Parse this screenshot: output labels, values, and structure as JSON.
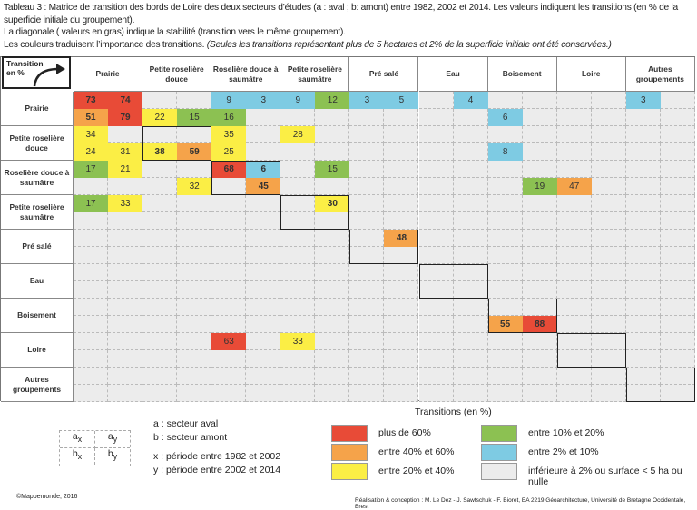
{
  "caption": {
    "line1": "Tableau 3 : Matrice de transition des bords de Loire des deux secteurs d’études (a : aval ; b: amont) entre 1982, 2002 et 2014. Les valeurs indiquent les transitions (en % de la superficie initiale du groupement).",
    "line2": "La diagonale ( valeurs en gras) indique la stabilité (transition vers le même groupement).",
    "line3": "Les couleurs traduisent l’importance des transitions. ",
    "line3_italic": "(Seules les transitions représentant plus de 5 hectares et 2% de la superficie initiale ont été conservées.)"
  },
  "corner_label": "Transition en %",
  "groups": [
    "Prairie",
    "Petite roselière douce",
    "Roselière douce à saumâtre",
    "Petite roselière saumâtre",
    "Pré salé",
    "Eau",
    "Boisement",
    "Loire",
    "Autres groupements"
  ],
  "colors": {
    "red": "#e84b37",
    "orange": "#f5a34a",
    "yellow": "#fbee45",
    "green": "#8cc152",
    "blue": "#7ecbe3",
    "grey": "#ececec"
  },
  "cells": [
    {
      "r": 0,
      "s": 0,
      "c": 0,
      "v": "73",
      "k": "red",
      "b": true
    },
    {
      "r": 0,
      "s": 0,
      "c": 1,
      "v": "74",
      "k": "red",
      "b": true
    },
    {
      "r": 0,
      "s": 0,
      "c": 4,
      "v": "9",
      "k": "blue"
    },
    {
      "r": 0,
      "s": 0,
      "c": 5,
      "v": "3",
      "k": "blue"
    },
    {
      "r": 0,
      "s": 0,
      "c": 6,
      "v": "9",
      "k": "blue"
    },
    {
      "r": 0,
      "s": 0,
      "c": 7,
      "v": "12",
      "k": "green"
    },
    {
      "r": 0,
      "s": 0,
      "c": 8,
      "v": "3",
      "k": "blue"
    },
    {
      "r": 0,
      "s": 0,
      "c": 9,
      "v": "5",
      "k": "blue"
    },
    {
      "r": 0,
      "s": 0,
      "c": 11,
      "v": "4",
      "k": "blue"
    },
    {
      "r": 0,
      "s": 0,
      "c": 16,
      "v": "3",
      "k": "blue"
    },
    {
      "r": 0,
      "s": 1,
      "c": 0,
      "v": "51",
      "k": "orange",
      "b": true
    },
    {
      "r": 0,
      "s": 1,
      "c": 1,
      "v": "79",
      "k": "red",
      "b": true
    },
    {
      "r": 0,
      "s": 1,
      "c": 2,
      "v": "22",
      "k": "yellow"
    },
    {
      "r": 0,
      "s": 1,
      "c": 3,
      "v": "15",
      "k": "green"
    },
    {
      "r": 0,
      "s": 1,
      "c": 4,
      "v": "16",
      "k": "green"
    },
    {
      "r": 0,
      "s": 1,
      "c": 12,
      "v": "6",
      "k": "blue"
    },
    {
      "r": 1,
      "s": 0,
      "c": 0,
      "v": "34",
      "k": "yellow"
    },
    {
      "r": 1,
      "s": 0,
      "c": 4,
      "v": "35",
      "k": "yellow"
    },
    {
      "r": 1,
      "s": 0,
      "c": 6,
      "v": "28",
      "k": "yellow"
    },
    {
      "r": 1,
      "s": 1,
      "c": 0,
      "v": "24",
      "k": "yellow"
    },
    {
      "r": 1,
      "s": 1,
      "c": 1,
      "v": "31",
      "k": "yellow"
    },
    {
      "r": 1,
      "s": 1,
      "c": 2,
      "v": "38",
      "k": "yellow",
      "b": true
    },
    {
      "r": 1,
      "s": 1,
      "c": 3,
      "v": "59",
      "k": "orange",
      "b": true
    },
    {
      "r": 1,
      "s": 1,
      "c": 4,
      "v": "25",
      "k": "yellow"
    },
    {
      "r": 1,
      "s": 1,
      "c": 12,
      "v": "8",
      "k": "blue"
    },
    {
      "r": 2,
      "s": 0,
      "c": 0,
      "v": "17",
      "k": "green"
    },
    {
      "r": 2,
      "s": 0,
      "c": 1,
      "v": "21",
      "k": "yellow"
    },
    {
      "r": 2,
      "s": 0,
      "c": 4,
      "v": "68",
      "k": "red",
      "b": true
    },
    {
      "r": 2,
      "s": 0,
      "c": 5,
      "v": "6",
      "k": "blue",
      "b": true
    },
    {
      "r": 2,
      "s": 0,
      "c": 7,
      "v": "15",
      "k": "green"
    },
    {
      "r": 2,
      "s": 1,
      "c": 3,
      "v": "32",
      "k": "yellow"
    },
    {
      "r": 2,
      "s": 1,
      "c": 5,
      "v": "45",
      "k": "orange",
      "b": true
    },
    {
      "r": 2,
      "s": 1,
      "c": 13,
      "v": "19",
      "k": "green"
    },
    {
      "r": 2,
      "s": 1,
      "c": 14,
      "v": "47",
      "k": "orange"
    },
    {
      "r": 3,
      "s": 0,
      "c": 0,
      "v": "17",
      "k": "green"
    },
    {
      "r": 3,
      "s": 0,
      "c": 1,
      "v": "33",
      "k": "yellow"
    },
    {
      "r": 3,
      "s": 0,
      "c": 7,
      "v": "30",
      "k": "yellow",
      "b": true
    },
    {
      "r": 4,
      "s": 0,
      "c": 9,
      "v": "48",
      "k": "orange",
      "b": true
    },
    {
      "r": 6,
      "s": 1,
      "c": 12,
      "v": "55",
      "k": "orange",
      "b": true
    },
    {
      "r": 6,
      "s": 1,
      "c": 13,
      "v": "88",
      "k": "red",
      "b": true
    },
    {
      "r": 7,
      "s": 0,
      "c": 4,
      "v": "63",
      "k": "red"
    },
    {
      "r": 7,
      "s": 0,
      "c": 6,
      "v": "33",
      "k": "yellow"
    }
  ],
  "axis_label": "Transitions (en %)",
  "key": {
    "ax": "a",
    "x": "x",
    "ay": "a",
    "y": "y",
    "bx": "b",
    "by": "b"
  },
  "notes": [
    "a : secteur aval",
    "b : secteur amont",
    "x : période entre 1982 et 2002",
    "y : période entre 2002 et 2014"
  ],
  "legend": [
    {
      "k": "red",
      "label": "plus de 60%"
    },
    {
      "k": "orange",
      "label": "entre 40% et 60%"
    },
    {
      "k": "yellow",
      "label": "entre 20% et 40%"
    },
    {
      "k": "green",
      "label": "entre 10% et 20%"
    },
    {
      "k": "blue",
      "label": "entre 2% et 10%"
    },
    {
      "k": "grey",
      "label": "inférieure à 2%  ou surface < 5 ha ou nulle"
    }
  ],
  "copyright": "©Mappemonde, 2016",
  "credits": "Réalisation & conception : M. Le Dez - J. Sawtschuk - F. Bioret, EA 2219 Géoarchitecture, Université de Bretagne Occidentale, Brest"
}
